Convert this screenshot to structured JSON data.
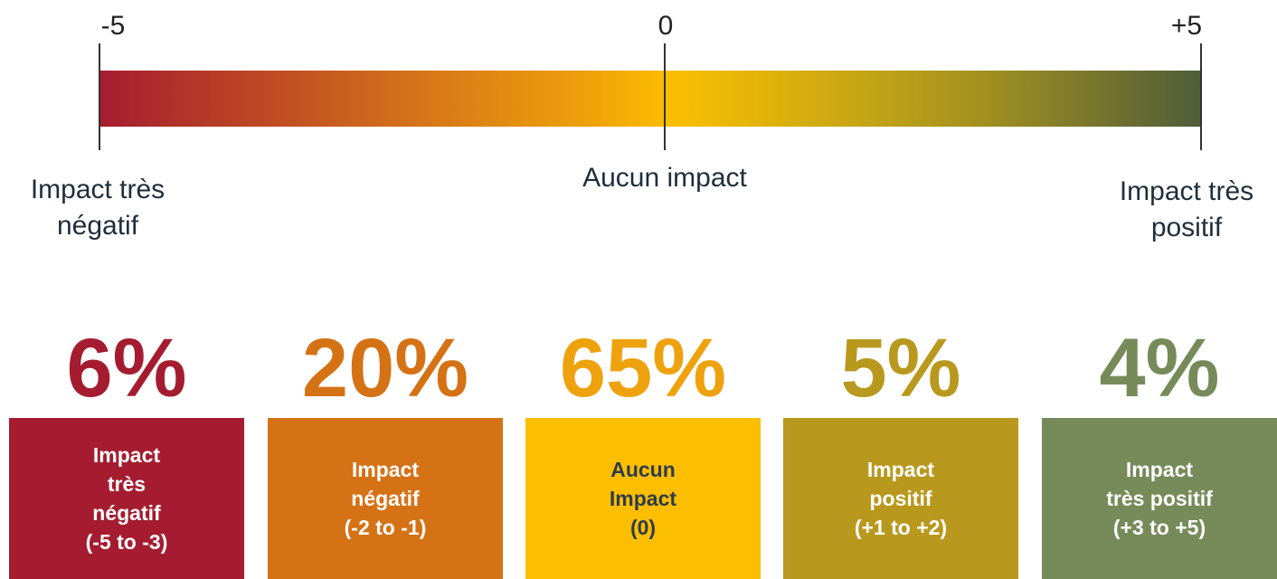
{
  "scale": {
    "ticks": [
      "-5",
      "0",
      "+5"
    ],
    "labels": [
      [
        "Impact très",
        "négatif"
      ],
      [
        "Aucun impact"
      ],
      [
        "Impact très",
        "positif"
      ]
    ]
  },
  "categories": [
    {
      "percent": "6%",
      "lines": [
        "Impact",
        "très",
        "négatif",
        "(-5 to -3)"
      ]
    },
    {
      "percent": "20%",
      "lines": [
        "Impact",
        "négatif",
        "(-2 to -1)"
      ]
    },
    {
      "percent": "65%",
      "lines": [
        "Aucun",
        "Impact",
        "(0)"
      ]
    },
    {
      "percent": "5%",
      "lines": [
        "Impact",
        "positif",
        "(+1 to +2)"
      ]
    },
    {
      "percent": "4%",
      "lines": [
        "Impact",
        "très positif",
        "(+3 to +5)"
      ]
    }
  ]
}
